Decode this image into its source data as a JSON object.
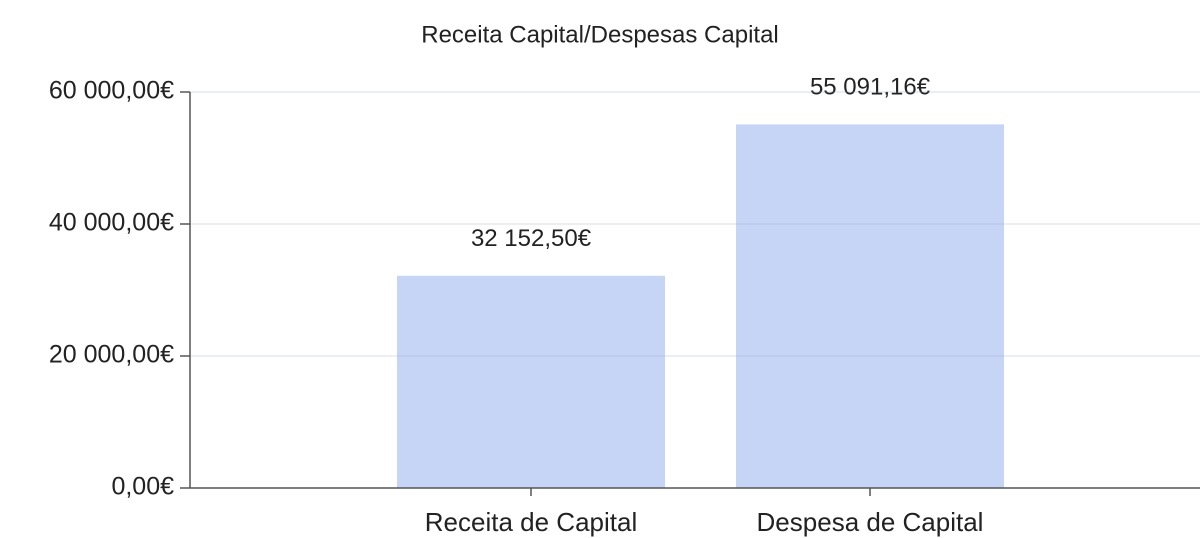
{
  "chart_data": {
    "type": "bar",
    "title": "Receita Capital/Despesas Capital",
    "categories": [
      "Receita de Capital",
      "Despesa de Capital"
    ],
    "values": [
      32152.5,
      55091.16
    ],
    "value_labels": [
      "32 152,50€",
      "55 091,16€"
    ],
    "color": "#c6d4f6",
    "ylim": [
      0,
      60000
    ],
    "yticks": [
      {
        "value": 0,
        "label": "0,00€"
      },
      {
        "value": 20000,
        "label": "20 000,00€"
      },
      {
        "value": 40000,
        "label": "40 000,00€"
      },
      {
        "value": 60000,
        "label": "60 000,00€"
      }
    ],
    "grid": true
  }
}
